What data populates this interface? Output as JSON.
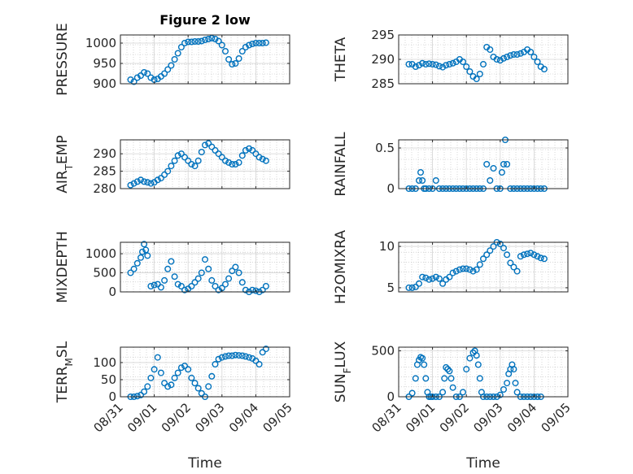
{
  "figure": {
    "title": "Figure 2 low",
    "marker_color": "#0072BD",
    "grid": true
  },
  "chart_data": [
    {
      "type": "scatter",
      "name": "pressure",
      "ylabel": "PRESSURE",
      "ylim": [
        900,
        1020
      ],
      "yticks": [
        900,
        950,
        1000
      ],
      "x": [
        0.3,
        0.4,
        0.5,
        0.6,
        0.7,
        0.8,
        0.9,
        1.0,
        1.1,
        1.2,
        1.3,
        1.4,
        1.5,
        1.6,
        1.7,
        1.8,
        1.9,
        2.0,
        2.1,
        2.2,
        2.3,
        2.4,
        2.5,
        2.6,
        2.7,
        2.8,
        2.9,
        3.0,
        3.1,
        3.2,
        3.3,
        3.4,
        3.5,
        3.6,
        3.7,
        3.8,
        3.9,
        4.0,
        4.1,
        4.2,
        4.3
      ],
      "y": [
        910,
        905,
        915,
        920,
        928,
        925,
        915,
        910,
        912,
        918,
        925,
        935,
        945,
        960,
        975,
        990,
        1000,
        1003,
        1003,
        1004,
        1004,
        1005,
        1008,
        1010,
        1012,
        1010,
        1005,
        995,
        980,
        960,
        948,
        950,
        962,
        980,
        990,
        995,
        998,
        1000,
        1000,
        1000,
        1001
      ]
    },
    {
      "type": "scatter",
      "name": "theta",
      "ylabel": "THETA",
      "ylim": [
        285,
        295
      ],
      "yticks": [
        285,
        290,
        295
      ],
      "x": [
        0.3,
        0.4,
        0.5,
        0.6,
        0.7,
        0.8,
        0.9,
        1.0,
        1.1,
        1.2,
        1.3,
        1.4,
        1.5,
        1.6,
        1.7,
        1.8,
        1.9,
        2.0,
        2.1,
        2.2,
        2.3,
        2.4,
        2.5,
        2.6,
        2.7,
        2.8,
        2.9,
        3.0,
        3.1,
        3.2,
        3.3,
        3.4,
        3.5,
        3.6,
        3.7,
        3.8,
        3.9,
        4.0,
        4.1,
        4.2,
        4.3
      ],
      "y": [
        289,
        289,
        288.5,
        288.8,
        289.2,
        289,
        289.1,
        289,
        288.9,
        288.6,
        288.4,
        288.8,
        289,
        289.2,
        289.5,
        290,
        289.5,
        288.5,
        287.5,
        286.5,
        286,
        287,
        289,
        292.5,
        292,
        290.5,
        290,
        289.8,
        290.2,
        290.5,
        290.8,
        291,
        291,
        291.2,
        291.5,
        292,
        291.5,
        290.5,
        289.5,
        288.5,
        288
      ]
    },
    {
      "type": "scatter",
      "name": "air-temp",
      "ylabel": "AIR_TEMP",
      "ylim": [
        280,
        294
      ],
      "yticks": [
        280,
        285,
        290
      ],
      "x": [
        0.3,
        0.4,
        0.5,
        0.6,
        0.7,
        0.8,
        0.9,
        1.0,
        1.1,
        1.2,
        1.3,
        1.4,
        1.5,
        1.6,
        1.7,
        1.8,
        1.9,
        2.0,
        2.1,
        2.2,
        2.3,
        2.4,
        2.5,
        2.6,
        2.7,
        2.8,
        2.9,
        3.0,
        3.1,
        3.2,
        3.3,
        3.4,
        3.5,
        3.6,
        3.7,
        3.8,
        3.9,
        4.0,
        4.1,
        4.2,
        4.3
      ],
      "y": [
        281,
        281.5,
        282,
        282.5,
        282,
        281.8,
        281.5,
        281.8,
        282.5,
        283,
        284,
        285,
        286.5,
        288,
        289.5,
        290,
        289,
        288,
        287,
        286.5,
        288,
        290.5,
        292.5,
        293,
        292,
        291,
        290,
        289,
        288,
        287.5,
        287,
        287,
        287.5,
        289.5,
        291,
        291.5,
        291,
        290,
        289,
        288.5,
        288
      ]
    },
    {
      "type": "scatter",
      "name": "rainfall",
      "ylabel": "RAINFALL",
      "ylim": [
        0,
        0.6
      ],
      "yticks": [
        0,
        0.5
      ],
      "x": [
        0.3,
        0.4,
        0.5,
        0.6,
        0.65,
        0.7,
        0.75,
        0.8,
        0.9,
        1.0,
        1.1,
        1.2,
        1.3,
        1.4,
        1.5,
        1.6,
        1.7,
        1.8,
        1.9,
        2.0,
        2.1,
        2.2,
        2.3,
        2.4,
        2.5,
        2.6,
        2.7,
        2.8,
        2.9,
        3.0,
        3.05,
        3.1,
        3.15,
        3.2,
        3.3,
        3.4,
        3.5,
        3.6,
        3.7,
        3.8,
        3.9,
        4.0,
        4.1,
        4.2,
        4.3
      ],
      "y": [
        0,
        0,
        0,
        0.1,
        0.2,
        0.1,
        0,
        0,
        0,
        0,
        0.1,
        0,
        0,
        0,
        0,
        0,
        0,
        0,
        0,
        0,
        0,
        0,
        0,
        0,
        0,
        0.3,
        0.1,
        0.25,
        0,
        0,
        0.2,
        0.3,
        0.6,
        0.3,
        0,
        0,
        0,
        0,
        0,
        0,
        0,
        0,
        0,
        0,
        0
      ]
    },
    {
      "type": "scatter",
      "name": "mixdepth",
      "ylabel": "MIXDEPTH",
      "ylim": [
        0,
        1300
      ],
      "yticks": [
        0,
        500,
        1000
      ],
      "x": [
        0.3,
        0.4,
        0.5,
        0.6,
        0.65,
        0.7,
        0.75,
        0.8,
        0.9,
        1.0,
        1.1,
        1.2,
        1.3,
        1.4,
        1.5,
        1.6,
        1.7,
        1.8,
        1.9,
        2.0,
        2.1,
        2.2,
        2.3,
        2.4,
        2.5,
        2.6,
        2.7,
        2.8,
        2.9,
        3.0,
        3.1,
        3.2,
        3.3,
        3.4,
        3.5,
        3.6,
        3.7,
        3.8,
        3.9,
        4.0,
        4.1,
        4.2,
        4.3
      ],
      "y": [
        500,
        600,
        750,
        900,
        1050,
        1250,
        1100,
        950,
        150,
        180,
        200,
        120,
        300,
        600,
        800,
        400,
        200,
        150,
        50,
        80,
        150,
        250,
        350,
        500,
        850,
        600,
        300,
        150,
        50,
        100,
        200,
        350,
        550,
        650,
        500,
        250,
        50,
        0,
        50,
        30,
        0,
        50,
        150
      ]
    },
    {
      "type": "scatter",
      "name": "h2omixra",
      "ylabel": "H2OMIXRA",
      "ylim": [
        4.5,
        10.5
      ],
      "yticks": [
        5,
        10
      ],
      "x": [
        0.3,
        0.4,
        0.5,
        0.6,
        0.7,
        0.8,
        0.9,
        1.0,
        1.1,
        1.2,
        1.3,
        1.4,
        1.5,
        1.6,
        1.7,
        1.8,
        1.9,
        2.0,
        2.1,
        2.2,
        2.3,
        2.4,
        2.5,
        2.6,
        2.7,
        2.8,
        2.9,
        3.0,
        3.1,
        3.2,
        3.3,
        3.4,
        3.5,
        3.6,
        3.7,
        3.8,
        3.9,
        4.0,
        4.1,
        4.2,
        4.3
      ],
      "y": [
        5,
        5,
        5.1,
        5.5,
        6.3,
        6.2,
        6.0,
        6.1,
        6.3,
        6.1,
        5.5,
        6.0,
        6.3,
        6.8,
        7.0,
        7.2,
        7.3,
        7.3,
        7.2,
        7.0,
        7.2,
        7.8,
        8.5,
        9.0,
        9.5,
        10.0,
        10.5,
        10.3,
        9.8,
        9.0,
        8.0,
        7.5,
        7.0,
        8.8,
        9.0,
        9.1,
        9.2,
        9.0,
        8.8,
        8.6,
        8.5
      ]
    },
    {
      "type": "scatter",
      "name": "terr-msl",
      "ylabel": "TERR_MSL",
      "ylim": [
        0,
        145
      ],
      "yticks": [
        0,
        50,
        100
      ],
      "x": [
        0.3,
        0.4,
        0.5,
        0.6,
        0.7,
        0.8,
        0.9,
        1.0,
        1.1,
        1.2,
        1.3,
        1.4,
        1.5,
        1.6,
        1.7,
        1.8,
        1.9,
        2.0,
        2.1,
        2.2,
        2.3,
        2.4,
        2.5,
        2.6,
        2.7,
        2.8,
        2.9,
        3.0,
        3.1,
        3.2,
        3.3,
        3.4,
        3.5,
        3.6,
        3.7,
        3.8,
        3.9,
        4.0,
        4.1,
        4.2,
        4.3
      ],
      "y": [
        0,
        0,
        2,
        5,
        15,
        30,
        55,
        80,
        115,
        70,
        40,
        30,
        35,
        55,
        70,
        85,
        90,
        80,
        55,
        40,
        25,
        10,
        0,
        30,
        60,
        95,
        110,
        115,
        118,
        120,
        120,
        122,
        121,
        120,
        118,
        115,
        112,
        105,
        95,
        130,
        140
      ]
    },
    {
      "type": "scatter",
      "name": "sun-flux",
      "ylabel": "SUN_FLUX",
      "ylim": [
        0,
        540
      ],
      "yticks": [
        0,
        500
      ],
      "x": [
        0.3,
        0.4,
        0.5,
        0.55,
        0.6,
        0.65,
        0.7,
        0.75,
        0.8,
        0.85,
        0.9,
        0.95,
        1.0,
        1.1,
        1.2,
        1.3,
        1.35,
        1.4,
        1.45,
        1.5,
        1.55,
        1.6,
        1.7,
        1.8,
        1.9,
        2.0,
        2.1,
        2.2,
        2.25,
        2.3,
        2.35,
        2.4,
        2.45,
        2.5,
        2.6,
        2.7,
        2.8,
        2.9,
        3.0,
        3.1,
        3.2,
        3.25,
        3.3,
        3.35,
        3.4,
        3.45,
        3.5,
        3.6,
        3.7,
        3.8,
        3.9,
        4.0,
        4.1,
        4.2
      ],
      "y": [
        0,
        40,
        200,
        350,
        400,
        430,
        420,
        350,
        200,
        50,
        0,
        0,
        0,
        0,
        0,
        50,
        200,
        320,
        300,
        280,
        200,
        100,
        0,
        0,
        50,
        300,
        420,
        480,
        500,
        450,
        350,
        200,
        50,
        0,
        0,
        0,
        0,
        0,
        20,
        80,
        150,
        250,
        300,
        350,
        300,
        150,
        50,
        0,
        0,
        0,
        0,
        0,
        0,
        0
      ]
    }
  ],
  "x_axis": {
    "label": "Time",
    "range": [
      0,
      5
    ],
    "ticks": [
      0,
      1,
      2,
      3,
      4,
      5
    ],
    "tick_labels": [
      "08/31",
      "09/01",
      "09/02",
      "09/03",
      "09/04",
      "09/05"
    ]
  }
}
